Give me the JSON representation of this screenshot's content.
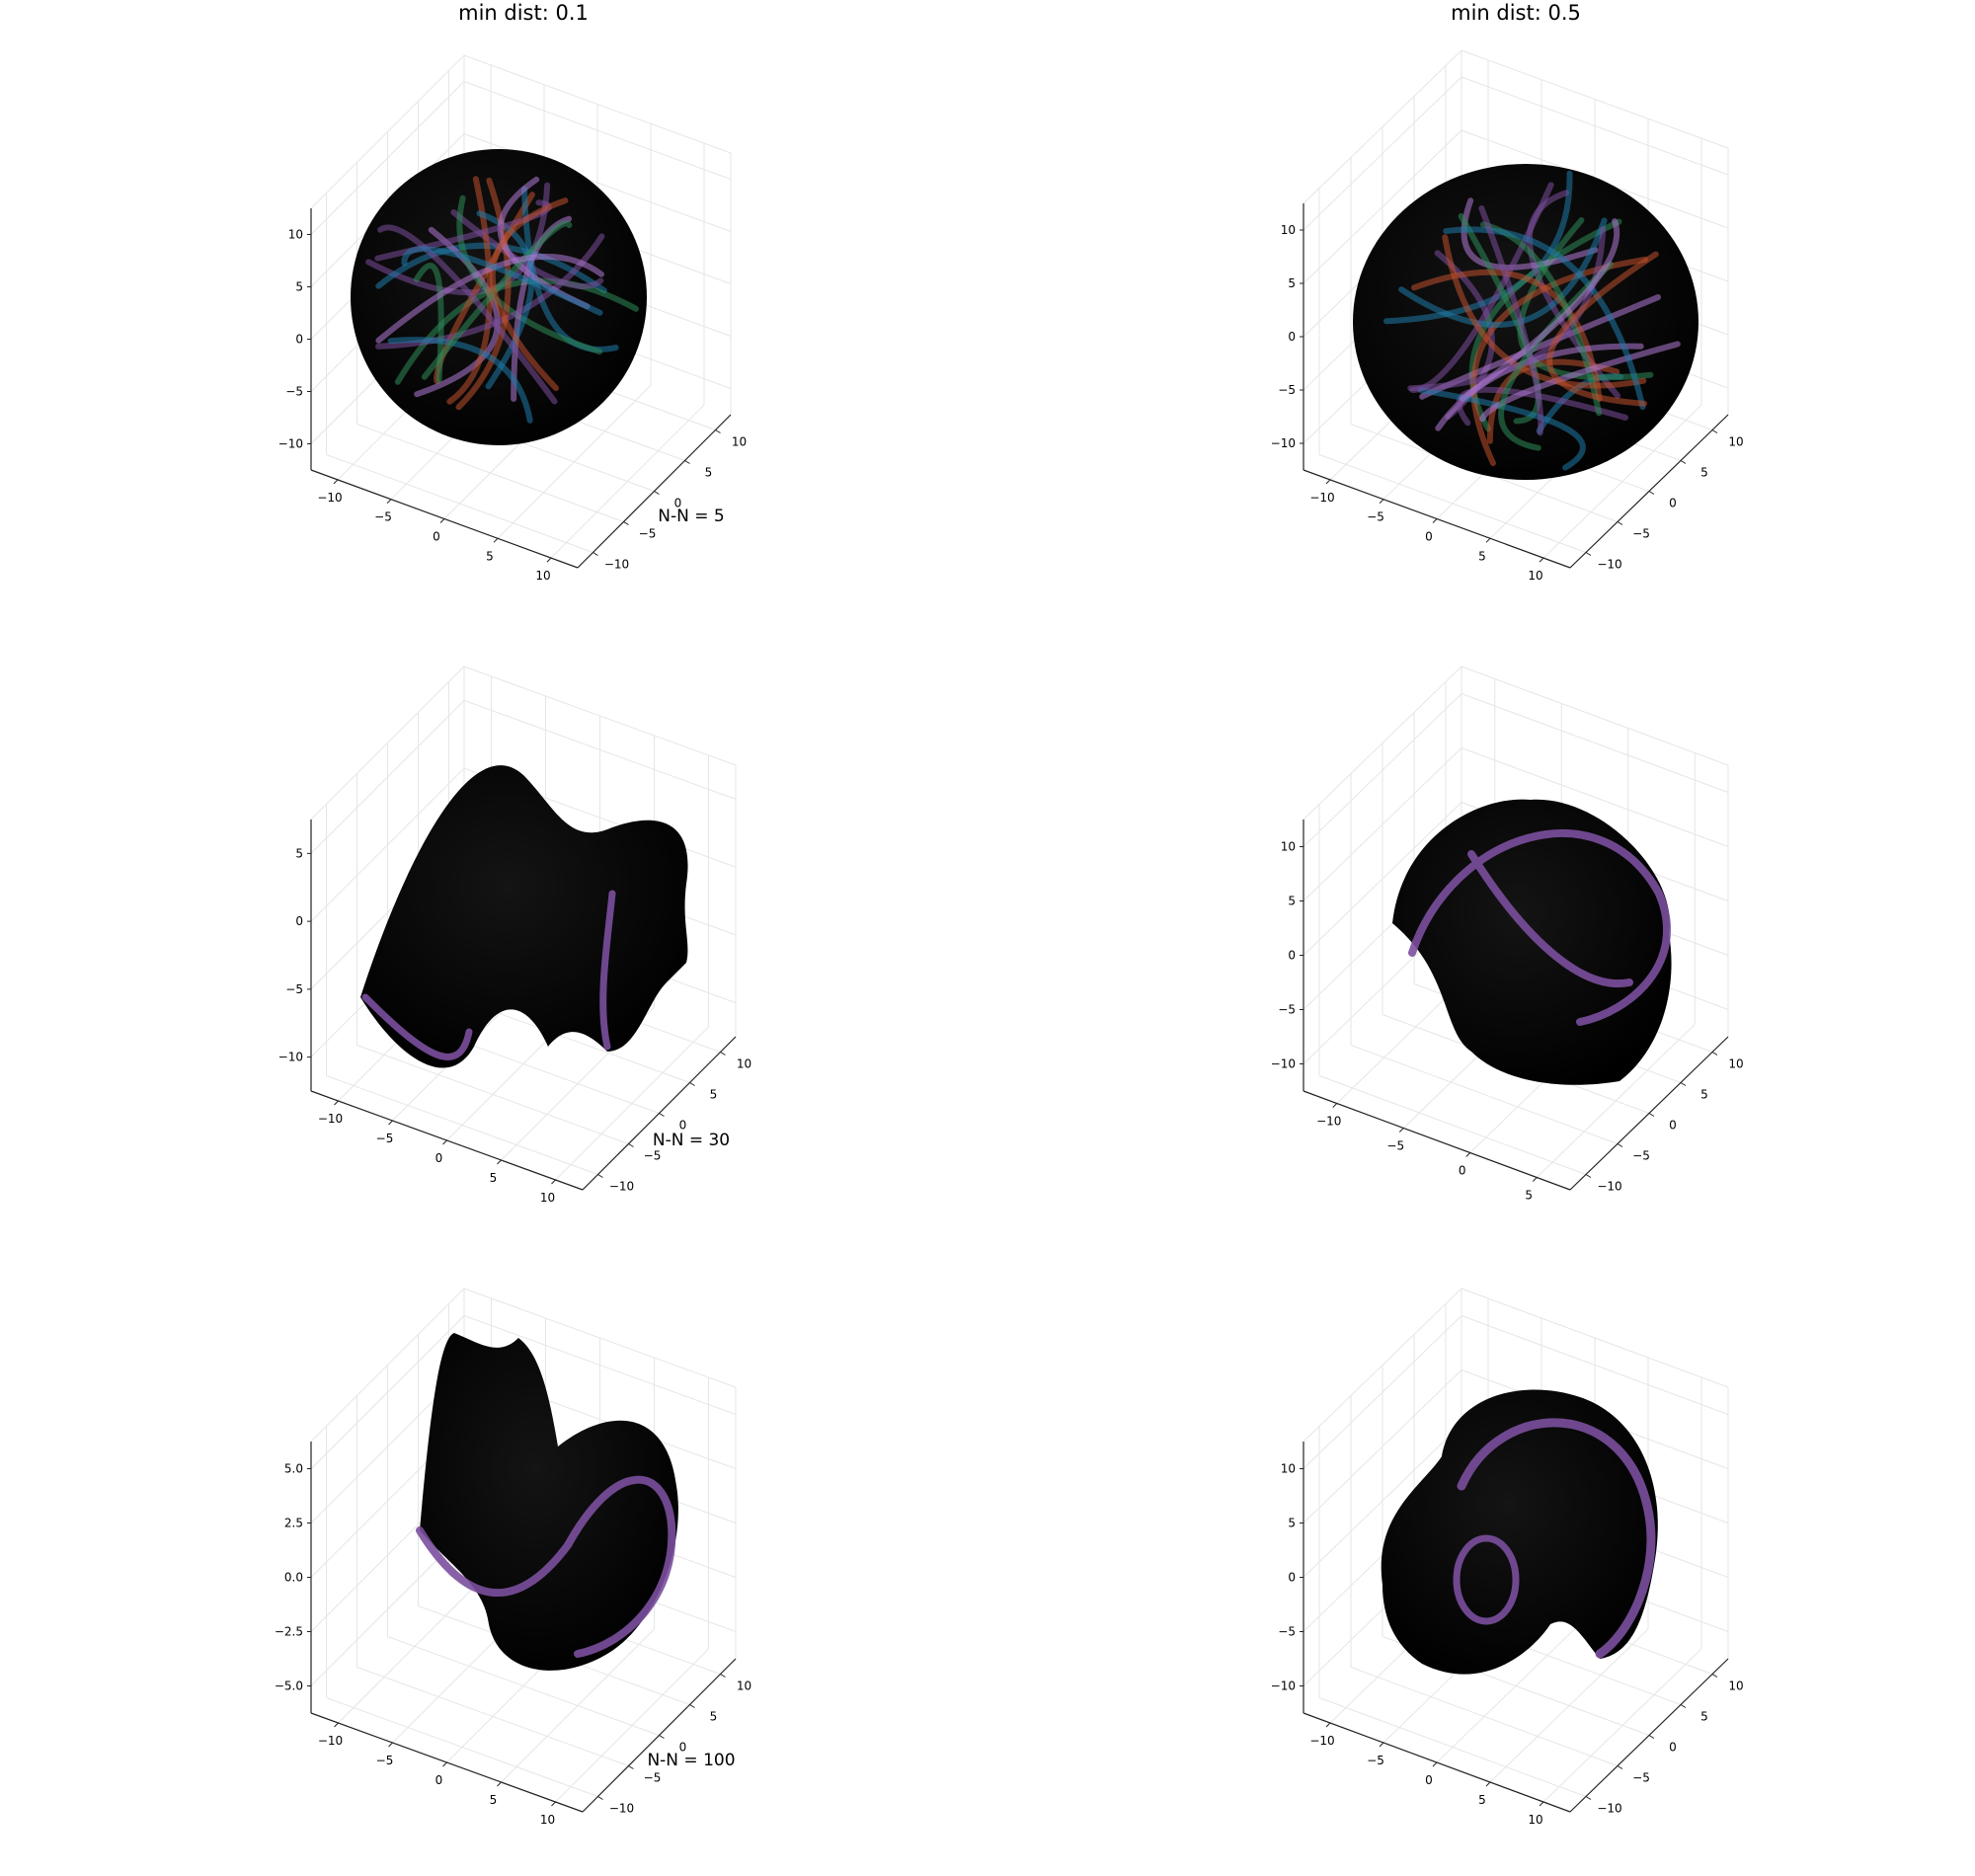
{
  "column_titles": [
    "min dist: 0.1",
    "min dist: 0.5"
  ],
  "row_labels": [
    "N-N = 5",
    "N-N = 30",
    "N-N = 100"
  ],
  "colors": {
    "background": "#ffffff",
    "body": "#050505",
    "axis": "#222222",
    "grid": "#e6e6e6",
    "series": [
      "#7b4f9d",
      "#1f7aa8",
      "#2e8b57",
      "#c0502e",
      "#b07ad6"
    ]
  },
  "chart_data": [
    {
      "type": "scatter",
      "projection": "3d",
      "title": "min dist: 0.1",
      "xlabel": "N-N = 5",
      "x_ticks": [
        "−10",
        "−5",
        "0",
        "5",
        "10"
      ],
      "y_ticks": [
        "−10",
        "−5",
        "0",
        "5",
        "10"
      ],
      "z_ticks": [
        "−10",
        "−5",
        "0",
        "5",
        "10"
      ],
      "xlim": [
        -10,
        10
      ],
      "ylim": [
        -10,
        10
      ],
      "zlim": [
        -10,
        10
      ],
      "grid": true
    },
    {
      "type": "scatter",
      "projection": "3d",
      "title": "min dist: 0.5",
      "xlabel": "",
      "x_ticks": [
        "−10",
        "−5",
        "0",
        "5",
        "10"
      ],
      "y_ticks": [
        "−10",
        "−5",
        "0",
        "5",
        "10"
      ],
      "z_ticks": [
        "−10",
        "−5",
        "0",
        "5",
        "10"
      ],
      "xlim": [
        -10,
        10
      ],
      "ylim": [
        -10,
        10
      ],
      "zlim": [
        -10,
        10
      ],
      "grid": true
    },
    {
      "type": "scatter",
      "projection": "3d",
      "title": "",
      "xlabel": "N-N = 30",
      "x_ticks": [
        "−10",
        "−5",
        "0",
        "5",
        "10"
      ],
      "y_ticks": [
        "−10",
        "−5",
        "0",
        "5",
        "10"
      ],
      "z_ticks": [
        "−10",
        "−5",
        "0",
        "5"
      ],
      "xlim": [
        -10,
        10
      ],
      "ylim": [
        -10,
        10
      ],
      "zlim": [
        -10,
        8
      ],
      "grid": true
    },
    {
      "type": "scatter",
      "projection": "3d",
      "title": "",
      "xlabel": "",
      "x_ticks": [
        "−10",
        "−5",
        "0",
        "5"
      ],
      "y_ticks": [
        "−10",
        "−5",
        "0",
        "5",
        "10"
      ],
      "z_ticks": [
        "−10",
        "−5",
        "0",
        "5",
        "10"
      ],
      "xlim": [
        -10,
        8
      ],
      "ylim": [
        -10,
        12
      ],
      "zlim": [
        -10,
        10
      ],
      "grid": true
    },
    {
      "type": "scatter",
      "projection": "3d",
      "title": "",
      "xlabel": "N-N = 100",
      "x_ticks": [
        "−10",
        "−5",
        "0",
        "5",
        "10"
      ],
      "y_ticks": [
        "−10",
        "−5",
        "0",
        "5",
        "10"
      ],
      "z_ticks": [
        "−5.0",
        "−2.5",
        "0.0",
        "2.5",
        "5.0"
      ],
      "xlim": [
        -10,
        10
      ],
      "ylim": [
        -10,
        10
      ],
      "zlim": [
        -5.5,
        6.5
      ],
      "grid": true
    },
    {
      "type": "scatter",
      "projection": "3d",
      "title": "",
      "xlabel": "",
      "x_ticks": [
        "−10",
        "−5",
        "0",
        "5",
        "10"
      ],
      "y_ticks": [
        "−10",
        "−5",
        "0",
        "5",
        "10"
      ],
      "z_ticks": [
        "−10",
        "−5",
        "0",
        "5",
        "10"
      ],
      "xlim": [
        -10,
        12
      ],
      "ylim": [
        -10,
        12
      ],
      "zlim": [
        -10,
        12
      ],
      "grid": true
    }
  ]
}
